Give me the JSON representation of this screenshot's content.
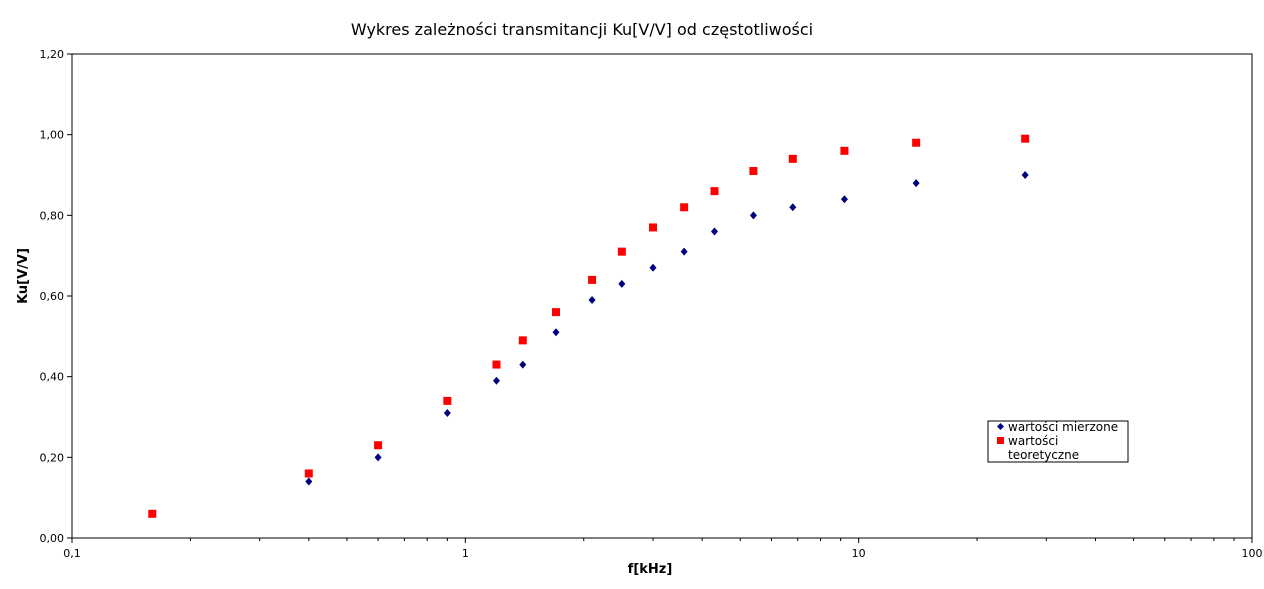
{
  "chart_data": {
    "type": "scatter",
    "title": "Wykres zależności transmitancji Ku[V/V] od częstotliwości",
    "xlabel": "f[kHz]",
    "ylabel": "Ku[V/V]",
    "x_scale": "log",
    "xlim": [
      0.1,
      100
    ],
    "ylim": [
      0,
      1.2
    ],
    "x_ticks": [
      0.1,
      1,
      10,
      100
    ],
    "x_tick_labels": [
      "0,1",
      "1",
      "10",
      "100"
    ],
    "y_ticks": [
      0,
      0.2,
      0.4,
      0.6,
      0.8,
      1.0,
      1.2
    ],
    "y_tick_labels": [
      "0,00",
      "0,20",
      "0,40",
      "0,60",
      "0,80",
      "1,00",
      "1,20"
    ],
    "grid": false,
    "legend_position": "bottom-right",
    "x": [
      0.16,
      0.4,
      0.6,
      0.9,
      1.2,
      1.4,
      1.7,
      2.1,
      2.5,
      3.0,
      3.6,
      4.3,
      5.4,
      6.8,
      9.2,
      14,
      26.5
    ],
    "series": [
      {
        "name": "wartości mierzone",
        "marker": "diamond",
        "color": "#000080",
        "values": [
          0.06,
          0.14,
          0.2,
          0.31,
          0.39,
          0.43,
          0.51,
          0.59,
          0.63,
          0.67,
          0.71,
          0.76,
          0.8,
          0.82,
          0.84,
          0.88,
          0.9
        ]
      },
      {
        "name": "wartości teoretyczne",
        "marker": "square",
        "color": "#ff0000",
        "values": [
          0.06,
          0.16,
          0.23,
          0.34,
          0.43,
          0.49,
          0.56,
          0.64,
          0.71,
          0.77,
          0.82,
          0.86,
          0.91,
          0.94,
          0.96,
          0.98,
          0.99
        ]
      }
    ]
  }
}
